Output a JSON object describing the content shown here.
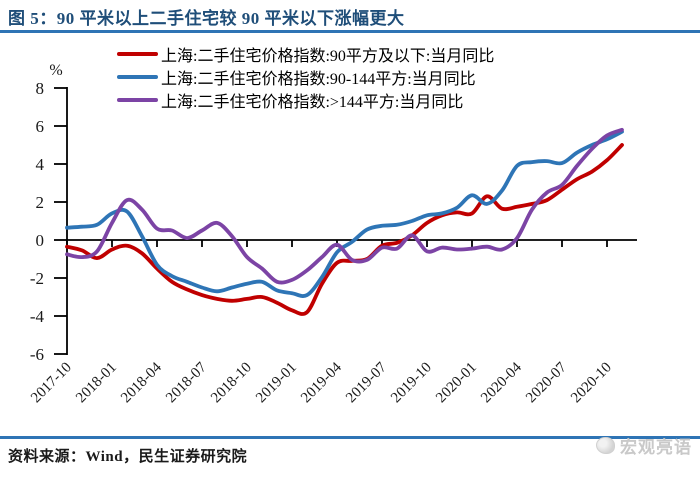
{
  "header": {
    "title": "图 5：90 平米以上二手住宅较 90 平米以下涨幅更大"
  },
  "footer": {
    "source": "资料来源：Wind，民生证券研究院",
    "watermark": "宏观亮语"
  },
  "chart_data": {
    "type": "line",
    "title": "图 5：90 平米以上二手住宅较 90 平米以下涨幅更大",
    "unit_label": "%",
    "ylim": [
      -6,
      8
    ],
    "yticks": [
      8,
      6,
      4,
      2,
      0,
      -2,
      -4,
      -6
    ],
    "grid": false,
    "legend_position": "top",
    "x_tick_labels": [
      "2017-10",
      "2018-01",
      "2018-04",
      "2018-07",
      "2018-10",
      "2019-01",
      "2019-04",
      "2019-07",
      "2019-10",
      "2020-01",
      "2020-04",
      "2020-07",
      "2020-10"
    ],
    "x": [
      "2017-10",
      "2017-11",
      "2017-12",
      "2018-01",
      "2018-02",
      "2018-03",
      "2018-04",
      "2018-05",
      "2018-06",
      "2018-07",
      "2018-08",
      "2018-09",
      "2018-10",
      "2018-11",
      "2018-12",
      "2019-01",
      "2019-02",
      "2019-03",
      "2019-04",
      "2019-05",
      "2019-06",
      "2019-07",
      "2019-08",
      "2019-09",
      "2019-10",
      "2019-11",
      "2019-12",
      "2020-01",
      "2020-02",
      "2020-03",
      "2020-04",
      "2020-05",
      "2020-06",
      "2020-07",
      "2020-08",
      "2020-09",
      "2020-10",
      "2020-11"
    ],
    "series": [
      {
        "name": "上海:二手住宅价格指数:90平方及以下:当月同比",
        "color": "#C00000",
        "values": [
          -0.35,
          -0.55,
          -0.95,
          -0.5,
          -0.3,
          -0.7,
          -1.5,
          -2.2,
          -2.6,
          -2.9,
          -3.1,
          -3.2,
          -3.1,
          -3.0,
          -3.3,
          -3.7,
          -3.8,
          -2.3,
          -1.2,
          -1.1,
          -1.0,
          -0.3,
          -0.15,
          0.25,
          0.9,
          1.3,
          1.45,
          1.4,
          2.3,
          1.65,
          1.75,
          1.9,
          2.1,
          2.65,
          3.2,
          3.6,
          4.2,
          5.0
        ]
      },
      {
        "name": "上海:二手住宅价格指数:90-144平方:当月同比",
        "color": "#2E75B6",
        "values": [
          0.65,
          0.7,
          0.8,
          1.4,
          1.5,
          0.2,
          -1.3,
          -1.9,
          -2.2,
          -2.5,
          -2.7,
          -2.5,
          -2.3,
          -2.2,
          -2.65,
          -2.8,
          -2.9,
          -1.95,
          -0.65,
          -0.1,
          0.55,
          0.75,
          0.8,
          1.0,
          1.3,
          1.4,
          1.7,
          2.35,
          1.9,
          2.6,
          3.9,
          4.1,
          4.15,
          4.05,
          4.6,
          5.0,
          5.3,
          5.7
        ]
      },
      {
        "name": "上海:二手住宅价格指数:>144平方:当月同比",
        "color": "#7C44A5",
        "values": [
          -0.75,
          -0.9,
          -0.6,
          0.9,
          2.1,
          1.6,
          0.6,
          0.5,
          0.1,
          0.5,
          0.9,
          0.2,
          -0.9,
          -1.5,
          -2.2,
          -2.1,
          -1.6,
          -0.9,
          -0.25,
          -1.05,
          -1.05,
          -0.4,
          -0.45,
          0.25,
          -0.6,
          -0.4,
          -0.5,
          -0.45,
          -0.35,
          -0.5,
          0.1,
          1.6,
          2.5,
          2.9,
          3.9,
          4.8,
          5.5,
          5.8
        ]
      }
    ]
  }
}
